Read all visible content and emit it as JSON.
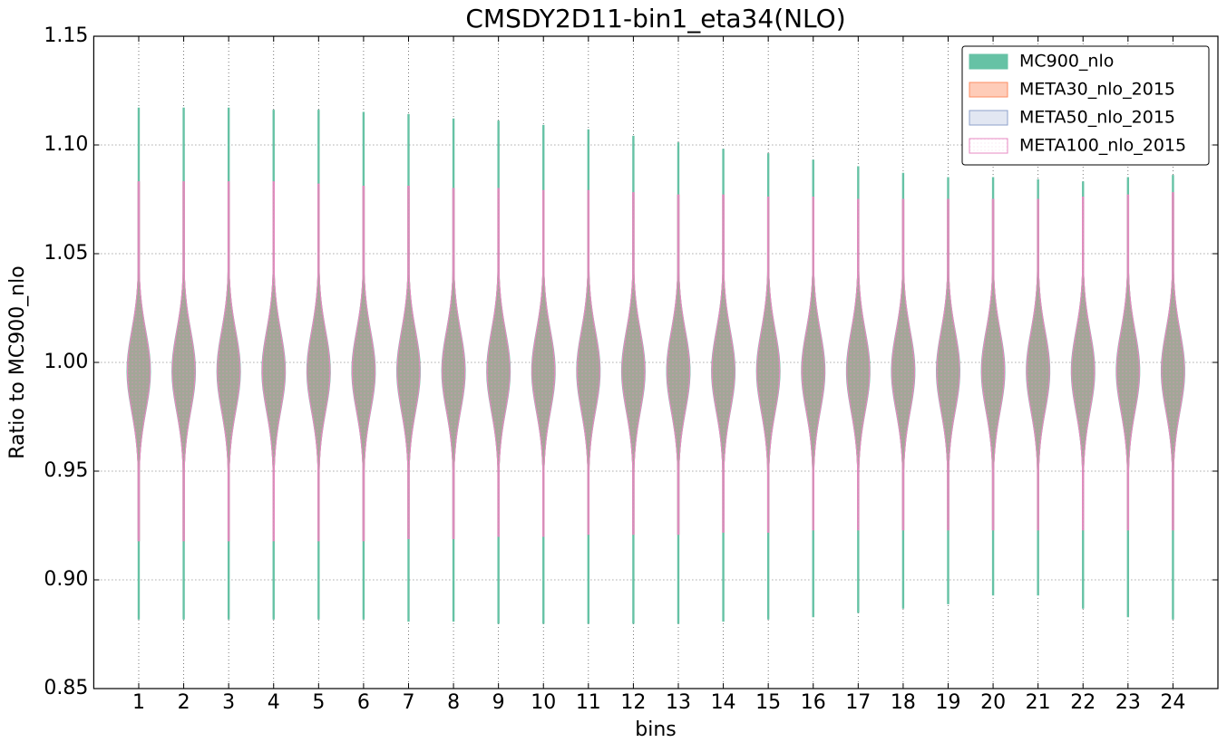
{
  "chart_data": {
    "type": "violin",
    "title": "CMSDY2D11-bin1_eta34(NLO)",
    "x_label": "bins",
    "y_label": "Ratio to MC900_nlo",
    "x": [
      1,
      2,
      3,
      4,
      5,
      6,
      7,
      8,
      9,
      10,
      11,
      12,
      13,
      14,
      15,
      16,
      17,
      18,
      19,
      20,
      21,
      22,
      23,
      24
    ],
    "xlim": [
      0,
      25
    ],
    "xticks": [
      1,
      2,
      3,
      4,
      5,
      6,
      7,
      8,
      9,
      10,
      11,
      12,
      13,
      14,
      15,
      16,
      17,
      18,
      19,
      20,
      21,
      22,
      23,
      24
    ],
    "ylim": [
      0.85,
      1.15
    ],
    "yticks": [
      0.85,
      {
        "value": 0.9,
        "label": "0.90"
      },
      0.95,
      {
        "value": 1,
        "label": "1.00"
      },
      1.05,
      {
        "value": 1.1,
        "label": "1.10"
      },
      1.15
    ],
    "grid": true,
    "legend": "upper right",
    "series": [
      {
        "name": "MC900_nlo",
        "color": "#66c2a5",
        "min": [
          0.882,
          0.882,
          0.882,
          0.882,
          0.882,
          0.882,
          0.881,
          0.881,
          0.88,
          0.88,
          0.88,
          0.88,
          0.88,
          0.881,
          0.882,
          0.883,
          0.885,
          0.887,
          0.889,
          0.893,
          0.893,
          0.887,
          0.883,
          0.882
        ],
        "max": [
          1.117,
          1.117,
          1.117,
          1.116,
          1.116,
          1.115,
          1.114,
          1.112,
          1.111,
          1.109,
          1.107,
          1.104,
          1.101,
          1.098,
          1.096,
          1.093,
          1.09,
          1.087,
          1.085,
          1.085,
          1.084,
          1.083,
          1.085,
          1.086
        ]
      },
      {
        "name": "META30_nlo_2015",
        "color": "#fc8d62",
        "min": [
          0.918,
          0.918,
          0.918,
          0.918,
          0.918,
          0.918,
          0.919,
          0.919,
          0.92,
          0.92,
          0.921,
          0.921,
          0.921,
          0.922,
          0.922,
          0.923,
          0.923,
          0.923,
          0.923,
          0.923,
          0.923,
          0.923,
          0.923,
          0.923
        ],
        "max": [
          1.083,
          1.083,
          1.083,
          1.083,
          1.082,
          1.081,
          1.081,
          1.08,
          1.08,
          1.079,
          1.079,
          1.078,
          1.077,
          1.077,
          1.076,
          1.076,
          1.075,
          1.075,
          1.075,
          1.075,
          1.075,
          1.076,
          1.077,
          1.078
        ]
      },
      {
        "name": "META50_nlo_2015",
        "color": "#8da0cb",
        "min": [
          0.918,
          0.918,
          0.918,
          0.918,
          0.918,
          0.918,
          0.919,
          0.919,
          0.92,
          0.92,
          0.921,
          0.921,
          0.921,
          0.922,
          0.922,
          0.923,
          0.923,
          0.923,
          0.923,
          0.923,
          0.923,
          0.923,
          0.923,
          0.923
        ],
        "max": [
          1.083,
          1.083,
          1.083,
          1.083,
          1.082,
          1.081,
          1.081,
          1.08,
          1.08,
          1.079,
          1.079,
          1.078,
          1.077,
          1.077,
          1.076,
          1.076,
          1.075,
          1.075,
          1.075,
          1.075,
          1.075,
          1.076,
          1.077,
          1.078
        ]
      },
      {
        "name": "META100_nlo_2015",
        "color": "#e78ac3",
        "min": [
          0.918,
          0.918,
          0.918,
          0.918,
          0.918,
          0.918,
          0.919,
          0.919,
          0.92,
          0.92,
          0.921,
          0.921,
          0.921,
          0.922,
          0.922,
          0.923,
          0.923,
          0.923,
          0.923,
          0.923,
          0.923,
          0.923,
          0.923,
          0.923
        ],
        "max": [
          1.083,
          1.083,
          1.083,
          1.083,
          1.082,
          1.081,
          1.081,
          1.08,
          1.08,
          1.079,
          1.079,
          1.078,
          1.077,
          1.077,
          1.076,
          1.076,
          1.075,
          1.075,
          1.075,
          1.075,
          1.075,
          1.076,
          1.077,
          1.078
        ]
      }
    ]
  }
}
